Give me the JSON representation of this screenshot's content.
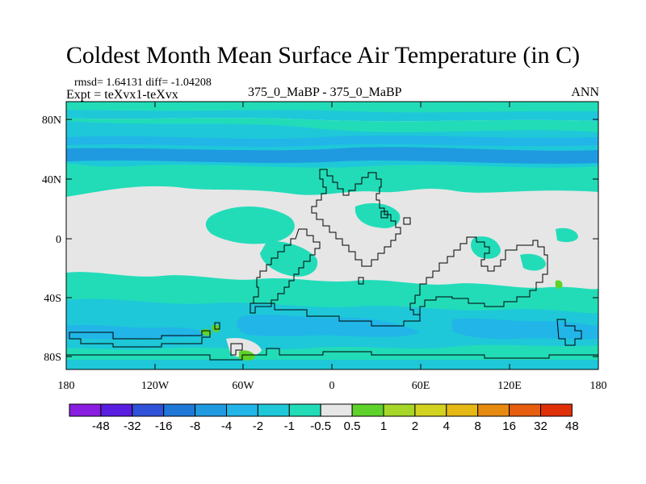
{
  "title": "Coldest Month Mean Surface Air Temperature (in C)",
  "stats_line": "rmsd= 1.64131 diff= -1.04208",
  "expt_line": "Expt = teXvx1-teXvx",
  "runs_line": "375_0_MaBP - 375_0_MaBP",
  "season": "ANN",
  "x_ticks": [
    "180",
    "120W",
    "60W",
    "0",
    "60E",
    "120E",
    "180"
  ],
  "y_ticks": [
    "80N",
    "40N",
    "0",
    "40S",
    "80S"
  ],
  "colorbar": {
    "labels": [
      "-48",
      "-32",
      "-16",
      "-8",
      "-4",
      "-2",
      "-1",
      "-0.5",
      "0.5",
      "1",
      "2",
      "4",
      "8",
      "16",
      "32",
      "48"
    ],
    "colors": [
      "#8a1ee0",
      "#5a1ee0",
      "#2f52d8",
      "#1f78d8",
      "#1f9ae0",
      "#22b5e8",
      "#1ec8d8",
      "#22dcb8",
      "#e6e6e6",
      "#5ed22a",
      "#a6d628",
      "#d2d220",
      "#e6b814",
      "#e68a10",
      "#e65e0e",
      "#e0300a"
    ]
  },
  "colors": {
    "land_bg": "#e6e6e6",
    "cool_1": "#22dcb8",
    "cool_2": "#1ec8d8",
    "cool_3": "#22b5e8",
    "cool_4": "#1f9ae0",
    "warm_1": "#5ed22a"
  }
}
